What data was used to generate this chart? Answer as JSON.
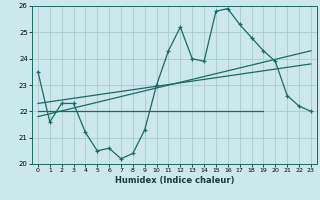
{
  "xlabel": "Humidex (Indice chaleur)",
  "xlim": [
    -0.5,
    23.5
  ],
  "ylim": [
    20,
    26
  ],
  "yticks": [
    20,
    21,
    22,
    23,
    24,
    25,
    26
  ],
  "xticks": [
    0,
    1,
    2,
    3,
    4,
    5,
    6,
    7,
    8,
    9,
    10,
    11,
    12,
    13,
    14,
    15,
    16,
    17,
    18,
    19,
    20,
    21,
    22,
    23
  ],
  "bg_color": "#cce8ec",
  "grid_color": "#aacccc",
  "line_color": "#1a6b62",
  "main_line": {
    "x": [
      0,
      1,
      2,
      3,
      4,
      5,
      6,
      7,
      8,
      9,
      10,
      11,
      12,
      13,
      14,
      15,
      16,
      17,
      18,
      19,
      20,
      21,
      22,
      23
    ],
    "y": [
      23.5,
      21.6,
      22.3,
      22.3,
      21.2,
      20.5,
      20.6,
      20.2,
      20.4,
      21.3,
      23.0,
      24.3,
      25.2,
      24.0,
      23.9,
      25.8,
      25.9,
      25.3,
      24.8,
      24.3,
      23.9,
      22.6,
      22.2,
      22.0
    ]
  },
  "trend_line1": {
    "x": [
      0,
      23
    ],
    "y": [
      21.8,
      24.3
    ]
  },
  "trend_line2": {
    "x": [
      0,
      23
    ],
    "y": [
      22.3,
      23.8
    ]
  },
  "trend_line3": {
    "x": [
      0,
      19
    ],
    "y": [
      22.0,
      22.0
    ]
  }
}
